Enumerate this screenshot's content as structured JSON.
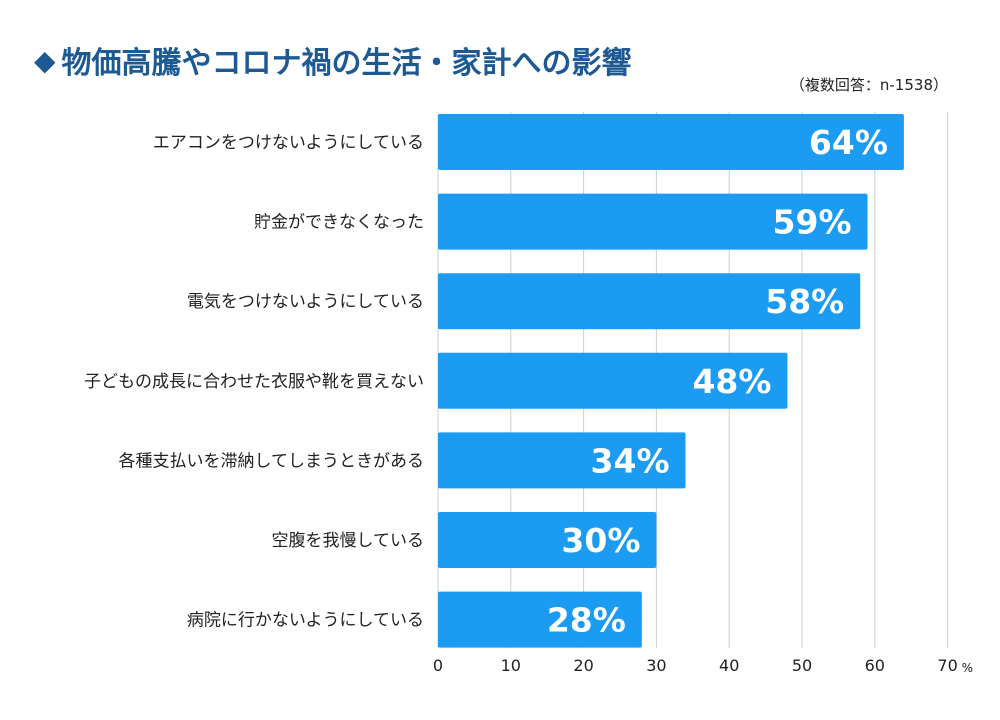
{
  "header": {
    "title": "物価高騰やコロナ禍の生活・家計への影響",
    "note": "（複数回答：n-1538）"
  },
  "chart_data": {
    "type": "bar",
    "orientation": "horizontal",
    "categories": [
      "エアコンをつけないようにしている",
      "貯金ができなくなった",
      "電気をつけないようにしている",
      "子どもの成長に合わせた衣服や靴を買えない",
      "各種支払いを滞納してしまうときがある",
      "空腹を我慢している",
      "病院に行かないようにしている"
    ],
    "values": [
      64,
      59,
      58,
      48,
      34,
      30,
      28
    ],
    "data_labels": [
      "64%",
      "59%",
      "58%",
      "48%",
      "34%",
      "30%",
      "28%"
    ],
    "xlim": [
      0,
      70
    ],
    "ticks": [
      0,
      10,
      20,
      30,
      40,
      50,
      60,
      70
    ],
    "tick_labels": [
      "0",
      "10",
      "20",
      "30",
      "40",
      "50",
      "60",
      "70"
    ],
    "x_unit": "%",
    "grid": true,
    "bar_color": "#1b9cf2",
    "grid_color": "#cfcfcf"
  }
}
